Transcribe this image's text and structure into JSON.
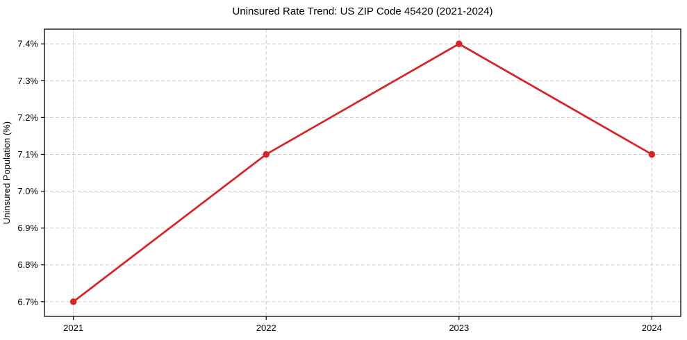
{
  "chart_data": {
    "type": "line",
    "title": "Uninsured Rate Trend: US ZIP Code 45420 (2021-2024)",
    "xlabel": "",
    "ylabel": "Uninsured Population (%)",
    "x": [
      2021,
      2022,
      2023,
      2024
    ],
    "values": [
      6.7,
      7.1,
      7.4,
      7.1
    ],
    "xtick_labels": [
      "2021",
      "2022",
      "2023",
      "2024"
    ],
    "xtick_values": [
      2021,
      2022,
      2023,
      2024
    ],
    "ytick_labels": [
      "6.7%",
      "6.8%",
      "6.9%",
      "7.0%",
      "7.1%",
      "7.2%",
      "7.3%",
      "7.4%"
    ],
    "ytick_values": [
      6.7,
      6.8,
      6.9,
      7.0,
      7.1,
      7.2,
      7.3,
      7.4
    ],
    "xlim": [
      2020.85,
      2024.15
    ],
    "ylim": [
      6.66,
      7.44
    ],
    "grid": true,
    "grid_style": "dashed",
    "legend_position": "none",
    "colors": {
      "line": "#d62728",
      "marker": "#d62728",
      "grid": "#cccccc",
      "spine": "#000000",
      "tick": "#000000",
      "text": "#000000",
      "background": "#ffffff"
    }
  }
}
